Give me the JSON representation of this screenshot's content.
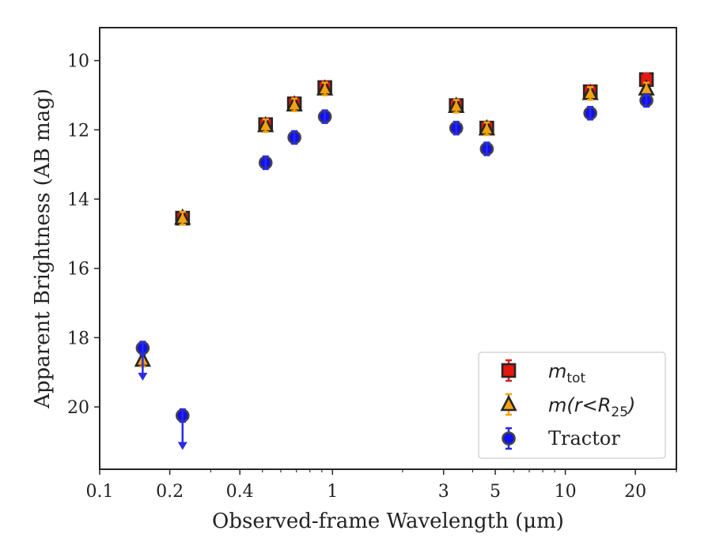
{
  "chart_data": {
    "type": "scatter",
    "x_scale": "log",
    "y_inverted": true,
    "xlabel": "Observed-frame Wavelength (μm)",
    "ylabel": "Apparent Brightness (AB mag)",
    "xlim": [
      0.1,
      30
    ],
    "ylim": [
      21.8,
      9.05
    ],
    "x_ticks": [
      {
        "value": 0.1,
        "label": "0.1"
      },
      {
        "value": 0.2,
        "label": "0.2"
      },
      {
        "value": 0.4,
        "label": "0.4"
      },
      {
        "value": 1,
        "label": "1"
      },
      {
        "value": 3,
        "label": "3"
      },
      {
        "value": 5,
        "label": "5"
      },
      {
        "value": 10,
        "label": "10"
      },
      {
        "value": 20,
        "label": "20"
      }
    ],
    "y_ticks": [
      {
        "value": 10,
        "label": "10"
      },
      {
        "value": 12,
        "label": "12"
      },
      {
        "value": 14,
        "label": "14"
      },
      {
        "value": 16,
        "label": "16"
      },
      {
        "value": 18,
        "label": "18"
      },
      {
        "value": 20,
        "label": "20"
      }
    ],
    "legend_position": "lower-right",
    "series": [
      {
        "name": "m_tot",
        "legend_label": "m",
        "legend_sub": "tot",
        "marker": "square",
        "color": "#e8160c",
        "errcolor": "#d62020",
        "x": [
          0.227,
          0.516,
          0.686,
          0.927,
          3.4,
          4.6,
          12.8,
          22.3
        ],
        "y": [
          14.55,
          11.85,
          11.25,
          10.78,
          11.3,
          11.95,
          10.9,
          10.55
        ]
      },
      {
        "name": "m(r<R25)",
        "legend_label": "m(r<R",
        "legend_sub": "25",
        "legend_tail": ")",
        "marker": "triangle",
        "color": "#f5a30e",
        "errcolor": "#f5a30e",
        "x": [
          0.153,
          0.227,
          0.516,
          0.686,
          0.927,
          3.4,
          4.6,
          12.8,
          22.3
        ],
        "y": [
          18.65,
          14.55,
          11.88,
          11.28,
          10.82,
          11.32,
          11.97,
          10.95,
          10.82
        ]
      },
      {
        "name": "Tractor",
        "legend_label": "Tractor",
        "marker": "circle",
        "color": "#1010f0",
        "errcolor": "#2a2ae8",
        "x": [
          0.153,
          0.227,
          0.516,
          0.686,
          0.927,
          3.4,
          4.6,
          12.8,
          22.3
        ],
        "y": [
          18.3,
          20.25,
          12.95,
          12.22,
          11.62,
          11.95,
          12.55,
          11.52,
          11.15
        ],
        "upper_limit": [
          true,
          true,
          false,
          false,
          false,
          false,
          false,
          false,
          false
        ],
        "limit_to": [
          19.15,
          21.15,
          null,
          null,
          null,
          null,
          null,
          null,
          null
        ]
      }
    ]
  }
}
